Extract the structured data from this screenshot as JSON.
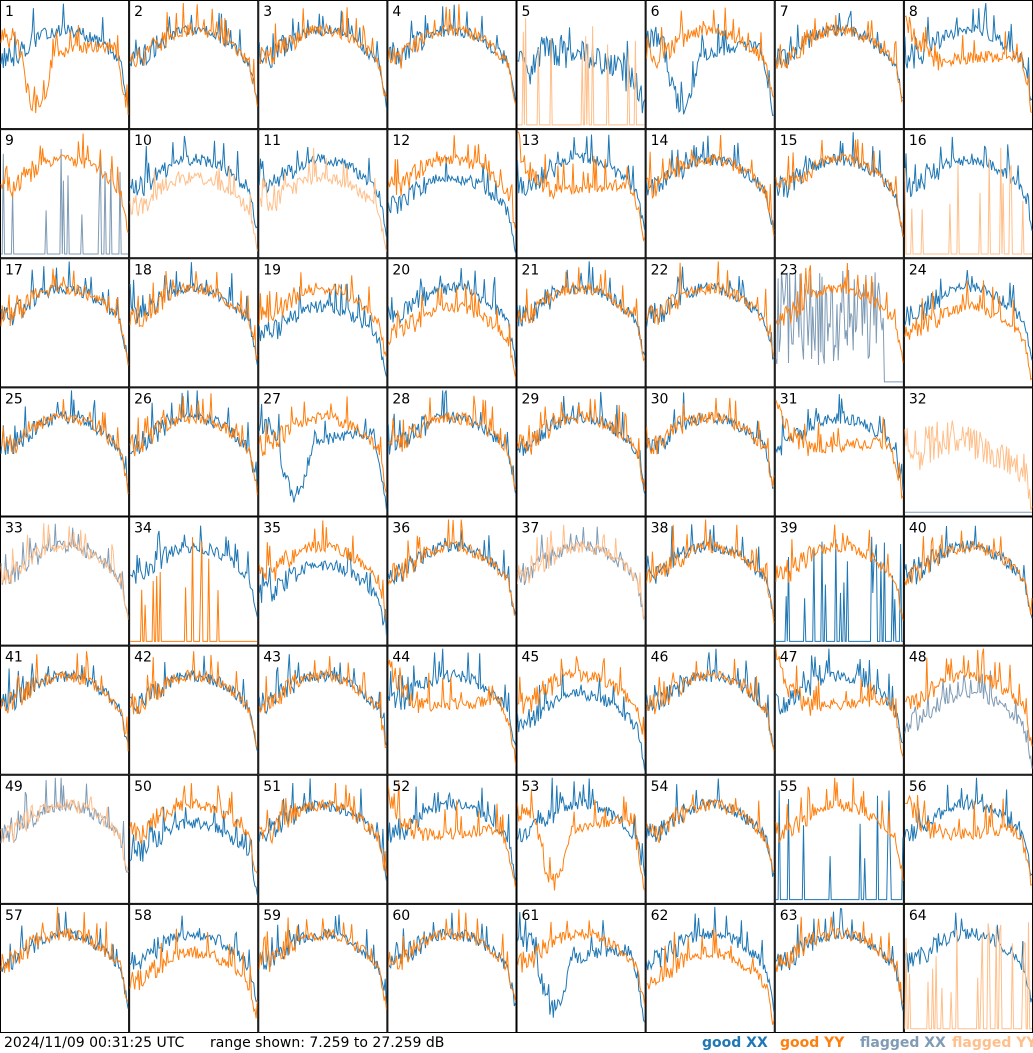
{
  "colors": {
    "good_xx": "#1f77b4",
    "good_yy": "#ff7f0e",
    "flagged_xx": "#7f9bb5",
    "flagged_yy": "#ffbf8a"
  },
  "footer": {
    "timestamp": "2024/11/09 00:31:25 UTC",
    "range_text": "range shown: 7.259 to 27.259 dB"
  },
  "legend": {
    "good_xx": "good XX",
    "good_yy": "good YY",
    "flagged_xx": "flagged XX",
    "flagged_yy": "flagged YY"
  },
  "chart_data": {
    "type": "line",
    "grid_rows": 8,
    "grid_cols": 8,
    "ylim": [
      7.259,
      27.259
    ],
    "yunit": "dB",
    "series_names": [
      "good XX",
      "good YY",
      "flagged XX",
      "flagged YY"
    ],
    "panels": [
      {
        "label": "1",
        "xx": "good",
        "yy": "good",
        "xx_shape": "normal",
        "yy_shape": "dip"
      },
      {
        "label": "2",
        "xx": "good",
        "yy": "good",
        "xx_shape": "normal",
        "yy_shape": "normal"
      },
      {
        "label": "3",
        "xx": "good",
        "yy": "good",
        "xx_shape": "normal",
        "yy_shape": "normal"
      },
      {
        "label": "4",
        "xx": "good",
        "yy": "good",
        "xx_shape": "normal",
        "yy_shape": "normal"
      },
      {
        "label": "5",
        "xx": "good",
        "yy": "flagged",
        "xx_shape": "noisy",
        "yy_shape": "spikes"
      },
      {
        "label": "6",
        "xx": "good",
        "yy": "good",
        "xx_shape": "dip",
        "yy_shape": "normal"
      },
      {
        "label": "7",
        "xx": "good",
        "yy": "good",
        "xx_shape": "normal",
        "yy_shape": "normal"
      },
      {
        "label": "8",
        "xx": "good",
        "yy": "good",
        "xx_shape": "normal",
        "yy_shape": "smooth"
      },
      {
        "label": "9",
        "xx": "flagged",
        "yy": "good",
        "xx_shape": "spikes",
        "yy_shape": "normal"
      },
      {
        "label": "10",
        "xx": "good",
        "yy": "flagged",
        "xx_shape": "normal",
        "yy_shape": "low"
      },
      {
        "label": "11",
        "xx": "good",
        "yy": "flagged",
        "xx_shape": "normal",
        "yy_shape": "low"
      },
      {
        "label": "12",
        "xx": "good",
        "yy": "good",
        "xx_shape": "low",
        "yy_shape": "normal"
      },
      {
        "label": "13",
        "xx": "good",
        "yy": "good",
        "xx_shape": "normal",
        "yy_shape": "smooth"
      },
      {
        "label": "14",
        "xx": "good",
        "yy": "good",
        "xx_shape": "normal",
        "yy_shape": "normal"
      },
      {
        "label": "15",
        "xx": "good",
        "yy": "good",
        "xx_shape": "normal",
        "yy_shape": "normal"
      },
      {
        "label": "16",
        "xx": "good",
        "yy": "flagged",
        "xx_shape": "normal",
        "yy_shape": "spikes"
      },
      {
        "label": "17",
        "xx": "good",
        "yy": "good",
        "xx_shape": "normal",
        "yy_shape": "normal"
      },
      {
        "label": "18",
        "xx": "good",
        "yy": "good",
        "xx_shape": "normal",
        "yy_shape": "normal"
      },
      {
        "label": "19",
        "xx": "good",
        "yy": "good",
        "xx_shape": "low",
        "yy_shape": "normal"
      },
      {
        "label": "20",
        "xx": "good",
        "yy": "good",
        "xx_shape": "normal",
        "yy_shape": "low"
      },
      {
        "label": "21",
        "xx": "good",
        "yy": "good",
        "xx_shape": "normal",
        "yy_shape": "normal"
      },
      {
        "label": "22",
        "xx": "good",
        "yy": "good",
        "xx_shape": "normal",
        "yy_shape": "normal"
      },
      {
        "label": "23",
        "xx": "flagged",
        "yy": "good",
        "xx_shape": "noisyflag",
        "yy_shape": "normal"
      },
      {
        "label": "24",
        "xx": "good",
        "yy": "good",
        "xx_shape": "normal",
        "yy_shape": "low"
      },
      {
        "label": "25",
        "xx": "good",
        "yy": "good",
        "xx_shape": "normal",
        "yy_shape": "normal"
      },
      {
        "label": "26",
        "xx": "good",
        "yy": "good",
        "xx_shape": "normal",
        "yy_shape": "normal"
      },
      {
        "label": "27",
        "xx": "good",
        "yy": "good",
        "xx_shape": "dip",
        "yy_shape": "normal"
      },
      {
        "label": "28",
        "xx": "good",
        "yy": "good",
        "xx_shape": "normal",
        "yy_shape": "normal"
      },
      {
        "label": "29",
        "xx": "good",
        "yy": "good",
        "xx_shape": "normal",
        "yy_shape": "normal"
      },
      {
        "label": "30",
        "xx": "good",
        "yy": "good",
        "xx_shape": "normal",
        "yy_shape": "normal"
      },
      {
        "label": "31",
        "xx": "good",
        "yy": "good",
        "xx_shape": "normal",
        "yy_shape": "smooth"
      },
      {
        "label": "32",
        "xx": "flagged",
        "yy": "flagged",
        "xx_shape": "none",
        "yy_shape": "noisy"
      },
      {
        "label": "33",
        "xx": "flagged",
        "yy": "flagged",
        "xx_shape": "normal",
        "yy_shape": "normal"
      },
      {
        "label": "34",
        "xx": "good",
        "yy": "good",
        "xx_shape": "normal",
        "yy_shape": "spikes"
      },
      {
        "label": "35",
        "xx": "good",
        "yy": "good",
        "xx_shape": "low",
        "yy_shape": "normal"
      },
      {
        "label": "36",
        "xx": "good",
        "yy": "good",
        "xx_shape": "normal",
        "yy_shape": "normal"
      },
      {
        "label": "37",
        "xx": "flagged",
        "yy": "flagged",
        "xx_shape": "normal",
        "yy_shape": "normal"
      },
      {
        "label": "38",
        "xx": "good",
        "yy": "good",
        "xx_shape": "normal",
        "yy_shape": "normal"
      },
      {
        "label": "39",
        "xx": "good",
        "yy": "good",
        "xx_shape": "spikes",
        "yy_shape": "normal"
      },
      {
        "label": "40",
        "xx": "good",
        "yy": "good",
        "xx_shape": "normal",
        "yy_shape": "normal"
      },
      {
        "label": "41",
        "xx": "good",
        "yy": "good",
        "xx_shape": "normal",
        "yy_shape": "normal"
      },
      {
        "label": "42",
        "xx": "good",
        "yy": "good",
        "xx_shape": "normal",
        "yy_shape": "normal"
      },
      {
        "label": "43",
        "xx": "good",
        "yy": "good",
        "xx_shape": "normal",
        "yy_shape": "normal"
      },
      {
        "label": "44",
        "xx": "good",
        "yy": "good",
        "xx_shape": "normal",
        "yy_shape": "smooth"
      },
      {
        "label": "45",
        "xx": "good",
        "yy": "good",
        "xx_shape": "low",
        "yy_shape": "normal"
      },
      {
        "label": "46",
        "xx": "good",
        "yy": "good",
        "xx_shape": "normal",
        "yy_shape": "normal"
      },
      {
        "label": "47",
        "xx": "good",
        "yy": "good",
        "xx_shape": "normal",
        "yy_shape": "smooth"
      },
      {
        "label": "48",
        "xx": "flagged",
        "yy": "good",
        "xx_shape": "low",
        "yy_shape": "normal"
      },
      {
        "label": "49",
        "xx": "flagged",
        "yy": "flagged",
        "xx_shape": "normal",
        "yy_shape": "normal"
      },
      {
        "label": "50",
        "xx": "good",
        "yy": "good",
        "xx_shape": "low",
        "yy_shape": "normal"
      },
      {
        "label": "51",
        "xx": "good",
        "yy": "good",
        "xx_shape": "normal",
        "yy_shape": "normal"
      },
      {
        "label": "52",
        "xx": "good",
        "yy": "good",
        "xx_shape": "normal",
        "yy_shape": "smooth"
      },
      {
        "label": "53",
        "xx": "good",
        "yy": "good",
        "xx_shape": "normal",
        "yy_shape": "dip"
      },
      {
        "label": "54",
        "xx": "good",
        "yy": "good",
        "xx_shape": "normal",
        "yy_shape": "normal"
      },
      {
        "label": "55",
        "xx": "good",
        "yy": "good",
        "xx_shape": "spikes",
        "yy_shape": "normal"
      },
      {
        "label": "56",
        "xx": "good",
        "yy": "good",
        "xx_shape": "normal",
        "yy_shape": "smooth"
      },
      {
        "label": "57",
        "xx": "good",
        "yy": "good",
        "xx_shape": "normal",
        "yy_shape": "normal"
      },
      {
        "label": "58",
        "xx": "good",
        "yy": "good",
        "xx_shape": "normal",
        "yy_shape": "low"
      },
      {
        "label": "59",
        "xx": "good",
        "yy": "good",
        "xx_shape": "normal",
        "yy_shape": "normal"
      },
      {
        "label": "60",
        "xx": "good",
        "yy": "good",
        "xx_shape": "normal",
        "yy_shape": "normal"
      },
      {
        "label": "61",
        "xx": "good",
        "yy": "good",
        "xx_shape": "dip",
        "yy_shape": "normal"
      },
      {
        "label": "62",
        "xx": "good",
        "yy": "good",
        "xx_shape": "normal",
        "yy_shape": "low"
      },
      {
        "label": "63",
        "xx": "good",
        "yy": "good",
        "xx_shape": "normal",
        "yy_shape": "normal"
      },
      {
        "label": "64",
        "xx": "good",
        "yy": "flagged",
        "xx_shape": "normal",
        "yy_shape": "spikes"
      }
    ]
  }
}
